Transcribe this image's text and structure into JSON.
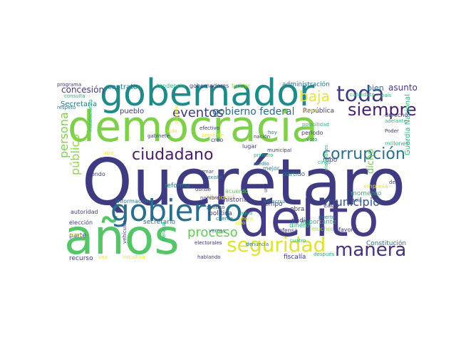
{
  "words": [
    {
      "text": "Querétaro",
      "color": "#3f3b82"
    },
    {
      "text": "democracia",
      "color": "#7ed04a"
    },
    {
      "text": "delito",
      "color": "#433c85"
    },
    {
      "text": "años",
      "color": "#55c668"
    },
    {
      "text": "gobernador",
      "color": "#1e8a8a"
    },
    {
      "text": "gobierno",
      "color": "#2a6e8e"
    },
    {
      "text": "toda",
      "color": "#3f3b82"
    },
    {
      "text": "seguridad",
      "color": "#dfe232"
    },
    {
      "text": "manera",
      "color": "#47307d"
    },
    {
      "text": "siempre",
      "color": "#481f70"
    },
    {
      "text": "corrupción",
      "color": "#2b6f8e"
    },
    {
      "text": "ciudadano",
      "color": "#4a1c66"
    },
    {
      "text": "baja",
      "color": "#e8e335"
    },
    {
      "text": "eventos",
      "color": "#3f3b82"
    },
    {
      "text": "proceso",
      "color": "#69c85a"
    },
    {
      "text": "persona",
      "color": "#7ed04a"
    },
    {
      "text": "público",
      "color": "#8fd744"
    },
    {
      "text": "municipio",
      "color": "#3a5489"
    },
    {
      "text": "gobierno federal",
      "color": "#2e6a8e"
    },
    {
      "text": "concesión",
      "color": "#3f3b82"
    },
    {
      "text": "asunto",
      "color": "#433c85"
    },
    {
      "text": "bien",
      "color": "#2b748e"
    },
    {
      "text": "contrato",
      "color": "#2a788e"
    },
    {
      "text": "Secretaría",
      "color": "#2a788e"
    },
    {
      "text": "pueblo",
      "color": "#3f3b82"
    },
    {
      "text": "República",
      "color": "#3f3b82"
    },
    {
      "text": "administración",
      "color": "#2f6e8e"
    },
    {
      "text": "tendencia",
      "color": "#2fb47c"
    },
    {
      "text": "gobernadores",
      "color": "#3f3b82"
    },
    {
      "text": "twitter",
      "color": "#94d840"
    },
    {
      "text": "programa",
      "color": "#3f3b82"
    },
    {
      "text": "respeto",
      "color": "#2a788e"
    },
    {
      "text": "consulta",
      "color": "#2fb47c"
    },
    {
      "text": "Nacional",
      "color": "#e8e335"
    },
    {
      "text": "reforma",
      "color": "#2a788e"
    },
    {
      "text": "política",
      "color": "#3f3b82"
    },
    {
      "text": "historia",
      "color": "#3f3b82"
    },
    {
      "text": "tiempo",
      "color": "#3f3b82"
    },
    {
      "text": "partido",
      "color": "#2a788e"
    },
    {
      "text": "robo",
      "color": "#3f3b82"
    },
    {
      "text": "dicho",
      "color": "#73d056"
    },
    {
      "text": "parte",
      "color": "#3f3b82"
    },
    {
      "text": "recurso",
      "color": "#3f3b82"
    },
    {
      "text": "fiscalía",
      "color": "#3f3b82"
    },
    {
      "text": "Constitución",
      "color": "#2a788e"
    },
    {
      "text": "momento",
      "color": "#2fb47c"
    },
    {
      "text": "importante",
      "color": "#2fb47c"
    },
    {
      "text": "dinero",
      "color": "#2fb47c"
    },
    {
      "text": "obra",
      "color": "#3f3b82"
    },
    {
      "text": "nadie",
      "color": "#3f3b82"
    },
    {
      "text": "cabo",
      "color": "#3f3b82"
    },
    {
      "text": "Defensa",
      "color": "#3f3b82"
    },
    {
      "text": "muchos",
      "color": "#94d840"
    },
    {
      "text": "favor",
      "color": "#3f3b82"
    },
    {
      "text": "secretario",
      "color": "#2a788e"
    },
    {
      "text": "información",
      "color": "#2a788e"
    },
    {
      "text": "autoridad",
      "color": "#3f3b82"
    },
    {
      "text": "elección",
      "color": "#3f3b82"
    },
    {
      "text": "fondo",
      "color": "#3f3b82"
    },
    {
      "text": "libertad",
      "color": "#3f3b82"
    },
    {
      "text": "acuerdo",
      "color": "#5ec962"
    },
    {
      "text": "empresa",
      "color": "#e8e335"
    },
    {
      "text": "Guardia Nacional",
      "color": "#2fb47c"
    },
    {
      "text": "Poder",
      "color": "#3f3b82"
    },
    {
      "text": "millones",
      "color": "#2fb47c"
    },
    {
      "text": "adelante",
      "color": "#2fb47c"
    },
    {
      "text": "derecho",
      "color": "#3f3b82"
    },
    {
      "text": "país",
      "color": "#2fb47c"
    },
    {
      "text": "candidato",
      "color": "#2fb47c"
    },
    {
      "text": "efectivo",
      "color": "#3f3b82"
    },
    {
      "text": "presente",
      "color": "#e8e335"
    },
    {
      "text": "lugar",
      "color": "#3f3b82"
    },
    {
      "text": "creo",
      "color": "#3f3b82"
    },
    {
      "text": "vida",
      "color": "#e8e335"
    },
    {
      "text": "hoy",
      "color": "#2a788e"
    },
    {
      "text": "voto",
      "color": "#2a788e"
    },
    {
      "text": "periodo",
      "color": "#3f3b82"
    },
    {
      "text": "posibilidad",
      "color": "#2fb47c"
    },
    {
      "text": "informar",
      "color": "#3f3b82"
    },
    {
      "text": "primero",
      "color": "#2fb47c"
    },
    {
      "text": "municipal",
      "color": "#3f3b82"
    },
    {
      "text": "nación",
      "color": "#3f3b82"
    },
    {
      "text": "mejor",
      "color": "#2a788e"
    },
    {
      "text": "medio",
      "color": "#2a788e"
    },
    {
      "text": "cinco",
      "color": "#2fb47c"
    },
    {
      "text": "existe",
      "color": "#2a788e"
    },
    {
      "text": "dónde",
      "color": "#3f3b82"
    },
    {
      "text": "nombre",
      "color": "#3f3b82"
    },
    {
      "text": "político",
      "color": "#3f3b82"
    },
    {
      "text": "hacia",
      "color": "#3f3b82"
    },
    {
      "text": "puerto",
      "color": "#2a788e"
    },
    {
      "text": "debe",
      "color": "#3f3b82"
    },
    {
      "text": "Veracruz",
      "color": "#2a788e"
    },
    {
      "text": "cara",
      "color": "#3f3b82"
    },
    {
      "text": "cuenta",
      "color": "#2a788e"
    },
    {
      "text": "vemos",
      "color": "#2a788e"
    },
    {
      "text": "sido",
      "color": "#e8e335"
    },
    {
      "text": "denuncia",
      "color": "#2a788e"
    },
    {
      "text": "electorales",
      "color": "#3f3b82"
    },
    {
      "text": "cuatro",
      "color": "#2fb47c"
    },
    {
      "text": "después",
      "color": "#2fb47c"
    },
    {
      "text": "hablando",
      "color": "#3f3b82"
    },
    {
      "text": "iniciativa",
      "color": "#e8e335"
    },
    {
      "text": "general",
      "color": "#2fb47c"
    },
    {
      "text": "vez",
      "color": "#e8e335"
    },
    {
      "text": "vehículos",
      "color": "#3f3b82"
    },
    {
      "text": "gabinete",
      "color": "#3f3b82"
    },
    {
      "text": "manejo",
      "color": "#e8e335"
    },
    {
      "text": "hecho",
      "color": "#e8e335"
    },
    {
      "text": "elecciones",
      "color": "#2fb47c"
    },
    {
      "text": "uso",
      "color": "#3f3b82"
    },
    {
      "text": "visto",
      "color": "#e8e335"
    },
    {
      "text": "alza",
      "color": "#e8e335"
    },
    {
      "text": "instalaciones",
      "color": "#2fb47c"
    },
    {
      "text": "ahora",
      "color": "#e8e335"
    },
    {
      "text": "agua",
      "color": "#2fb47c"
    }
  ]
}
